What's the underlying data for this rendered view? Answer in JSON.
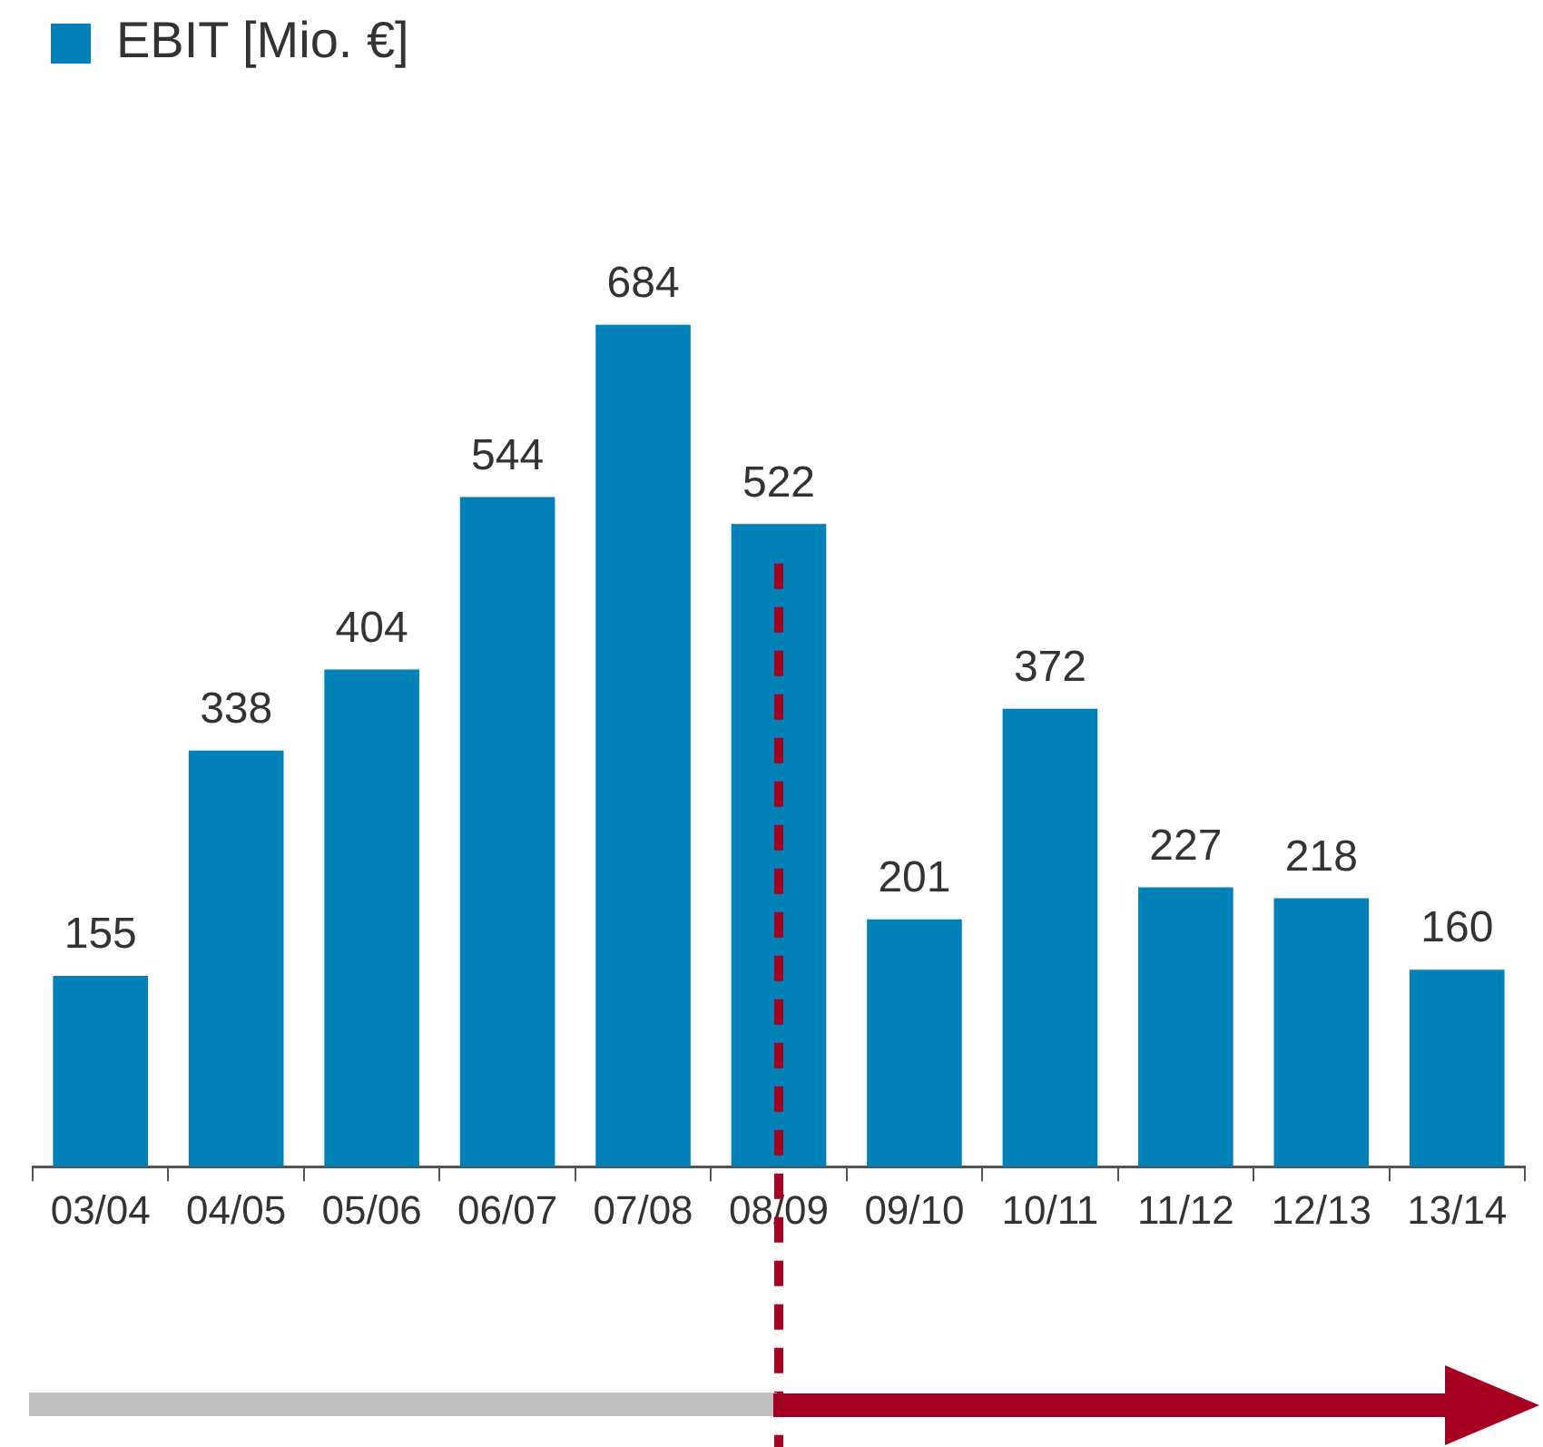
{
  "chart_data": {
    "type": "bar",
    "categories": [
      "03/04",
      "04/05",
      "05/06",
      "06/07",
      "07/08",
      "08/09",
      "09/10",
      "10/11",
      "11/12",
      "12/13",
      "13/14"
    ],
    "series": [
      {
        "name": "EBIT [Mio. €]",
        "color": "#0082b9",
        "values": [
          155,
          338,
          404,
          544,
          684,
          522,
          201,
          372,
          227,
          218,
          160
        ]
      }
    ],
    "data_labels": true,
    "legend": "top left",
    "grid": false,
    "ref_lines": [
      {
        "axis": "x",
        "value": "08/09",
        "color": "#a50021",
        "line_style": "dashed"
      }
    ]
  }
}
